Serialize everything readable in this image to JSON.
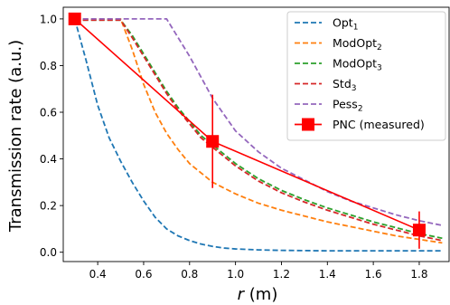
{
  "chart_data": {
    "type": "line",
    "xlabel": {
      "var": "r",
      "unit": " (m)"
    },
    "ylabel": "Transmission rate (a.u.)",
    "xlim": [
      0.25,
      1.93
    ],
    "ylim": [
      -0.04,
      1.05
    ],
    "x_ticks": [
      0.4,
      0.6,
      0.8,
      1.0,
      1.2,
      1.4,
      1.6,
      1.8
    ],
    "x_tick_labels": [
      "0.4",
      "0.6",
      "0.8",
      "1.0",
      "1.2",
      "1.4",
      "1.6",
      "1.8"
    ],
    "y_ticks": [
      0.0,
      0.2,
      0.4,
      0.6,
      0.8,
      1.0
    ],
    "y_tick_labels": [
      "0.0",
      "0.2",
      "0.4",
      "0.6",
      "0.8",
      "1.0"
    ],
    "grid": false,
    "legend_position": "top-right",
    "series": [
      {
        "name": "Opt",
        "subscript": "1",
        "style": "dashed",
        "color": "#1f77b4",
        "x": [
          0.3,
          0.35,
          0.4,
          0.45,
          0.5,
          0.55,
          0.6,
          0.65,
          0.7,
          0.75,
          0.8,
          0.85,
          0.9,
          0.95,
          1.0,
          1.1,
          1.2,
          1.4,
          1.6,
          1.8,
          1.9
        ],
        "y": [
          1.0,
          0.82,
          0.63,
          0.49,
          0.39,
          0.3,
          0.22,
          0.15,
          0.1,
          0.07,
          0.05,
          0.035,
          0.025,
          0.018,
          0.014,
          0.01,
          0.008,
          0.006,
          0.006,
          0.006,
          0.006
        ]
      },
      {
        "name": "ModOpt",
        "subscript": "2",
        "style": "dashed",
        "color": "#ff7f0e",
        "x": [
          0.3,
          0.4,
          0.5,
          0.55,
          0.6,
          0.65,
          0.7,
          0.75,
          0.8,
          0.85,
          0.9,
          1.0,
          1.1,
          1.2,
          1.3,
          1.4,
          1.5,
          1.6,
          1.7,
          1.8,
          1.9
        ],
        "y": [
          1.0,
          1.0,
          1.0,
          0.87,
          0.72,
          0.6,
          0.51,
          0.44,
          0.38,
          0.34,
          0.3,
          0.25,
          0.21,
          0.18,
          0.155,
          0.13,
          0.11,
          0.09,
          0.07,
          0.055,
          0.04
        ]
      },
      {
        "name": "ModOpt",
        "subscript": "3",
        "style": "dashed",
        "color": "#2ca02c",
        "x": [
          0.3,
          0.4,
          0.5,
          0.55,
          0.6,
          0.65,
          0.7,
          0.75,
          0.8,
          0.85,
          0.9,
          1.0,
          1.1,
          1.2,
          1.3,
          1.4,
          1.5,
          1.6,
          1.7,
          1.8,
          1.9
        ],
        "y": [
          0.995,
          0.995,
          0.995,
          0.93,
          0.85,
          0.77,
          0.69,
          0.62,
          0.56,
          0.5,
          0.46,
          0.38,
          0.315,
          0.265,
          0.225,
          0.19,
          0.16,
          0.13,
          0.105,
          0.08,
          0.06
        ]
      },
      {
        "name": "Std",
        "subscript": "3",
        "style": "dashed",
        "color": "#d62728",
        "x": [
          0.3,
          0.4,
          0.5,
          0.55,
          0.6,
          0.65,
          0.7,
          0.75,
          0.8,
          0.85,
          0.9,
          1.0,
          1.1,
          1.2,
          1.3,
          1.4,
          1.5,
          1.6,
          1.7,
          1.8,
          1.9
        ],
        "y": [
          0.995,
          0.995,
          0.995,
          0.92,
          0.84,
          0.76,
          0.68,
          0.61,
          0.55,
          0.49,
          0.45,
          0.37,
          0.305,
          0.255,
          0.215,
          0.18,
          0.15,
          0.12,
          0.095,
          0.07,
          0.05
        ]
      },
      {
        "name": "Pess",
        "subscript": "2",
        "style": "dashed",
        "color": "#9467bd",
        "x": [
          0.3,
          0.4,
          0.5,
          0.6,
          0.7,
          0.75,
          0.8,
          0.85,
          0.9,
          0.95,
          1.0,
          1.1,
          1.2,
          1.3,
          1.4,
          1.5,
          1.6,
          1.7,
          1.8,
          1.9
        ],
        "y": [
          1.0,
          1.0,
          1.0,
          1.0,
          1.0,
          0.92,
          0.84,
          0.75,
          0.66,
          0.59,
          0.52,
          0.43,
          0.36,
          0.31,
          0.26,
          0.22,
          0.19,
          0.16,
          0.135,
          0.115
        ]
      },
      {
        "name": "PNC (measured)",
        "style": "solid-markers",
        "color": "#ff0000",
        "x": [
          0.3,
          0.9,
          1.8
        ],
        "y": [
          1.0,
          0.475,
          0.095
        ],
        "yerr": [
          0.0,
          0.2,
          0.08
        ]
      }
    ]
  }
}
